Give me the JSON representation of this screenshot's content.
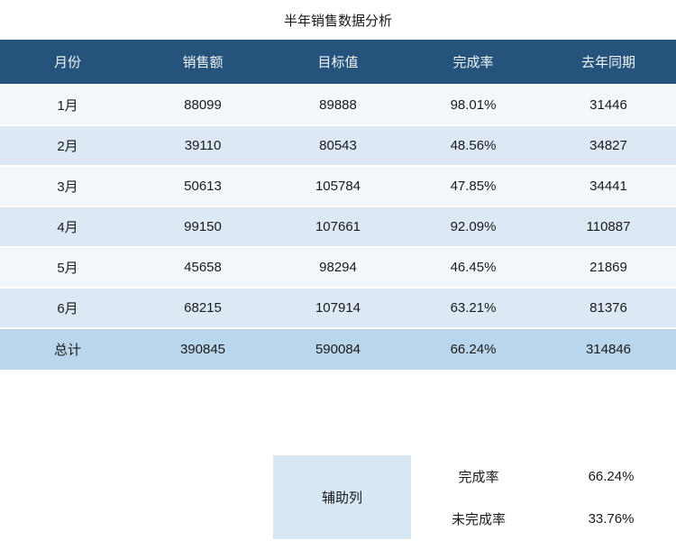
{
  "title": "半年销售数据分析",
  "table": {
    "columns": [
      "月份",
      "销售额",
      "目标值",
      "完成率",
      "去年同期"
    ],
    "rows": [
      [
        "1月",
        "88099",
        "89888",
        "98.01%",
        "31446"
      ],
      [
        "2月",
        "39110",
        "80543",
        "48.56%",
        "34827"
      ],
      [
        "3月",
        "50613",
        "105784",
        "47.85%",
        "34441"
      ],
      [
        "4月",
        "99150",
        "107661",
        "92.09%",
        "110887"
      ],
      [
        "5月",
        "45658",
        "98294",
        "46.45%",
        "21869"
      ],
      [
        "6月",
        "68215",
        "107914",
        "63.21%",
        "81376"
      ]
    ],
    "total": [
      "总计",
      "390845",
      "590084",
      "66.24%",
      "314846"
    ]
  },
  "summary": {
    "aux_label": "辅助列",
    "items": [
      {
        "label": "完成率",
        "value": "66.24%"
      },
      {
        "label": "未完成率",
        "value": "33.76%"
      }
    ]
  },
  "colors": {
    "header_bg": "#25537b",
    "header_text": "#f0f4f8",
    "row_odd_bg": "#f1f7fb",
    "row_even_bg": "#dce9f4",
    "total_row_bg": "#bad6ec",
    "aux_box_bg": "#d7e7f4",
    "body_text": "#1a1a1a"
  },
  "chart_data": {
    "type": "table",
    "title": "半年销售数据分析",
    "columns": [
      "月份",
      "销售额",
      "目标值",
      "完成率",
      "去年同期"
    ],
    "categories": [
      "1月",
      "2月",
      "3月",
      "4月",
      "5月",
      "6月"
    ],
    "series": [
      {
        "name": "销售额",
        "values": [
          88099,
          39110,
          50613,
          99150,
          45658,
          68215
        ]
      },
      {
        "name": "目标值",
        "values": [
          89888,
          80543,
          105784,
          107661,
          98294,
          107914
        ]
      },
      {
        "name": "完成率",
        "values": [
          "98.01%",
          "48.56%",
          "47.85%",
          "92.09%",
          "46.45%",
          "63.21%"
        ]
      },
      {
        "name": "去年同期",
        "values": [
          31446,
          34827,
          34441,
          110887,
          21869,
          81376
        ]
      }
    ],
    "total_row": {
      "月份": "总计",
      "销售额": 390845,
      "目标值": 590084,
      "完成率": "66.24%",
      "去年同期": 314846
    },
    "summary": {
      "辅助列": [
        {
          "label": "完成率",
          "value": "66.24%"
        },
        {
          "label": "未完成率",
          "value": "33.76%"
        }
      ]
    }
  }
}
